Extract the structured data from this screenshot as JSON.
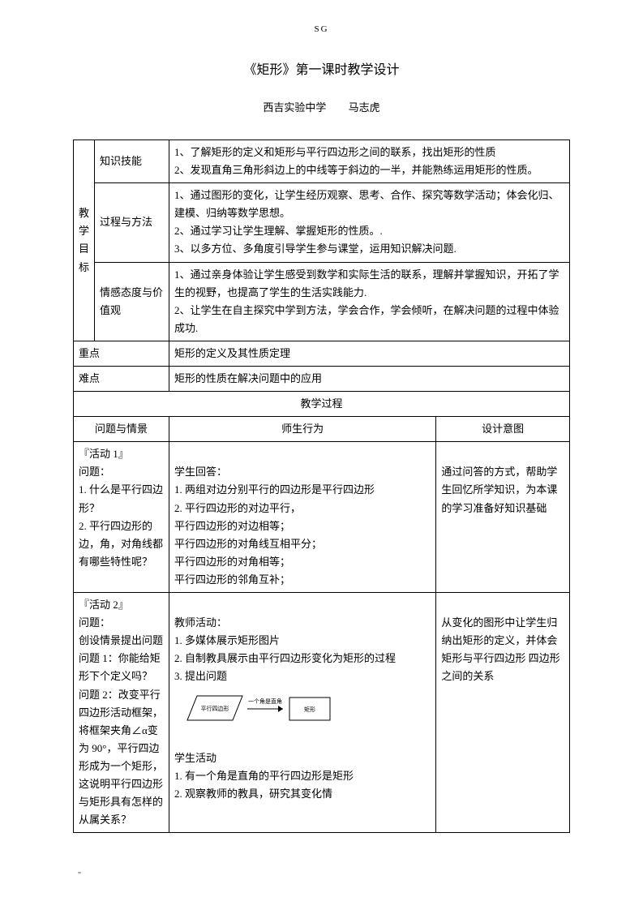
{
  "header": "SG",
  "title": "《矩形》第一课时教学设计",
  "school": "西吉实验中学",
  "author": "马志虎",
  "goals_label": "教学目标",
  "goals": [
    {
      "label": "知识技能",
      "lines": [
        "1、了解矩形的定义和矩形与平行四边形之间的联系，找出矩形的性质",
        "2、发现直角三角形斜边上的中线等于斜边的一半，并能熟练运用矩形的性质。"
      ]
    },
    {
      "label": "过程与方法",
      "lines": [
        "1、通过图形的变化，让学生经历观察、思考、合作、探究等数学活动；体会化归、建模、归纳等数学思想。",
        "2、通过学习让学生理解、掌握矩形的性质。.",
        "3、以多方位、多角度引导学生参与课堂，运用知识解决问题."
      ]
    },
    {
      "label": "情感态度与价值观",
      "lines": [
        "1、通过亲身体验让学生感受到数学和实际生活的联系，理解并掌握知识，开拓了学生的视野，也提高了学生的生活实践能力.",
        "2、让学生在自主探究中学到方法，学会合作，学会倾听，在解决问题的过程中体验成功."
      ]
    }
  ],
  "keypoint_label": "重点",
  "keypoint": "矩形的定义及其性质定理",
  "difficulty_label": "难点",
  "difficulty": "矩形的性质在解决问题中的应用",
  "process_header": "教学过程",
  "columns": {
    "c1": "问题与情景",
    "c2": "师生行为",
    "c3": "设计意图"
  },
  "activity1": {
    "title": "『活动 1』",
    "q_label": "问题：",
    "q1": "1. 什么是平行四边形？",
    "q2": "2. 平行四边形的边，角，对角线都有哪些特性呢？",
    "ans_label": "学生回答：",
    "a1": "1. 两组对边分别平行的四边形是平行四边形",
    "a2": "2. 平行四边形的对边平行，",
    "a3": "平行四边形的对边相等；",
    "a4": "平行四边形的对角线互相平分；",
    "a5": "平行四边形的对角相等；",
    "a6": "平行四边形的邻角互补；",
    "intent": "通过问答的方式，帮助学生回忆所学知识，为本课的学习准备好知识基础"
  },
  "activity2": {
    "title": "『活动 2』",
    "q_label": "问题：",
    "q0": "创设情景提出问题",
    "q1": "问题 1：你能给矩形下个定义吗？",
    "q2": "问题 2：改变平行四边形活动框架，将框架夹角∠α变为 90°，平行四边形成为一个矩形，这说明平行四边形与矩形具有怎样的从属关系？",
    "t_label": "教师活动：",
    "t1": "1. 多媒体展示矩形图片",
    "t2": "2. 自制教具展示由平行四边形变化为矩形的过程",
    "t3": "3. 提出问题",
    "diagram_left": "平行四边形",
    "diagram_arrow": "一个角是直角",
    "diagram_right": "矩形",
    "s_label": "学生活动",
    "s1": "1. 有一个角是直角的平行四边形是矩形",
    "s2": "2. 观察教师的教具，研究其变化情",
    "intent": "从变化的图形中让学生归纳出矩形的定义，并体会矩形与平行四边形 四边形之间的关系"
  },
  "footer": "\"",
  "style": {
    "page_bg": "#ffffff",
    "text_color": "#000000",
    "border_color": "#000000",
    "body_fontsize": 13,
    "title_fontsize": 16,
    "header_fontsize": 11,
    "svg": {
      "stroke": "#000000",
      "fill": "#ffffff",
      "label_fontsize": 7
    }
  }
}
